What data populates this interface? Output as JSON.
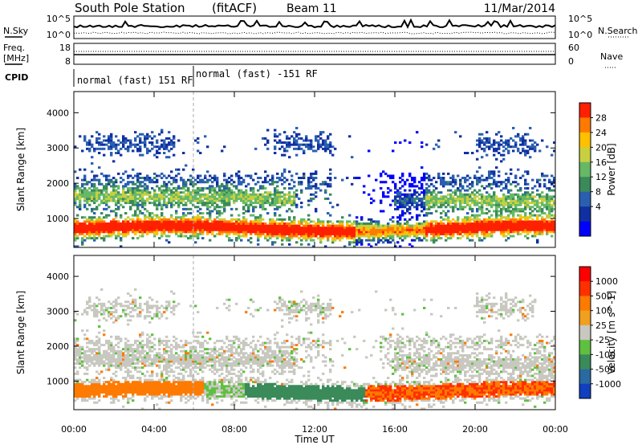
{
  "header": {
    "station": "South Pole Station",
    "mode": "(fitACF)",
    "beam": "Beam 11",
    "date": "11/Mar/2014"
  },
  "top_panels": {
    "nsky_label": "N.Sky",
    "nsearch_label": "N.Search",
    "noise_tick_high": "10^5",
    "noise_tick_low": "10^0",
    "freq_label_1": "Freq.",
    "freq_label_2": "[MHz]",
    "freq_tick_high": "18",
    "freq_tick_low": "8",
    "nave_label": "Nave",
    "nave_tick_high": "60",
    "nave_tick_low": "0",
    "cpid_label": "CPID",
    "cpid_segments": [
      "normal (fast) 151 RF",
      "normal (fast) -151 RF"
    ]
  },
  "chart_data": [
    {
      "type": "heatmap",
      "title": "",
      "xlabel": "Time UT",
      "ylabel": "Slant Range [km]",
      "x_range_hours": [
        0,
        24
      ],
      "x_ticks": [
        "00:00",
        "04:00",
        "08:00",
        "12:00",
        "16:00",
        "20:00",
        "00:00"
      ],
      "x_tick_hours": [
        0,
        4,
        8,
        12,
        16,
        20,
        24
      ],
      "ylim": [
        180,
        4600
      ],
      "y_ticks": [
        1000,
        2000,
        3000,
        4000
      ],
      "colorbar": {
        "label": "Power [dB]",
        "ticks": [
          "28",
          "24",
          "20",
          "16",
          "12",
          "8",
          "4"
        ],
        "colors": [
          "#0000ff",
          "#1030a0",
          "#2a5fb0",
          "#3a8a5a",
          "#66b866",
          "#c8d040",
          "#ffc000",
          "#ff7a00",
          "#ff2000"
        ]
      },
      "cpid_change_hour": 6
    },
    {
      "type": "heatmap",
      "title": "",
      "xlabel": "Time UT",
      "ylabel": "Slant Range [km]",
      "x_range_hours": [
        0,
        24
      ],
      "x_ticks": [
        "00:00",
        "04:00",
        "08:00",
        "12:00",
        "16:00",
        "20:00",
        "00:00"
      ],
      "x_tick_hours": [
        0,
        4,
        8,
        12,
        16,
        20,
        24
      ],
      "ylim": [
        180,
        4600
      ],
      "y_ticks": [
        1000,
        2000,
        3000,
        4000
      ],
      "colorbar": {
        "label": "Velocity [m s^-1]",
        "ticks": [
          "1000",
          "500",
          "100",
          "25",
          "-25",
          "-100",
          "-500",
          "-1000"
        ],
        "colors": [
          "#1040c0",
          "#2a6aa0",
          "#3a8a5a",
          "#5fc040",
          "#c8c8c0",
          "#f0a020",
          "#ff7a00",
          "#ff3000",
          "#ff0000"
        ]
      },
      "cpid_change_hour": 6
    }
  ]
}
